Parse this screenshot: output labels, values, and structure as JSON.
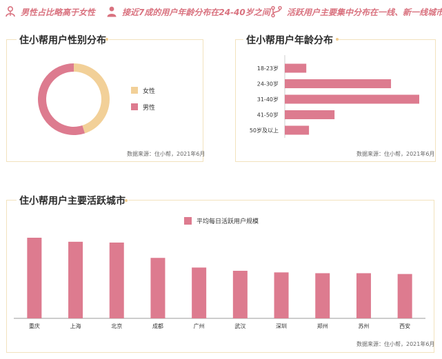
{
  "highlights": [
    {
      "icon": "male-user-icon",
      "text": "男性占比略高于女性"
    },
    {
      "icon": "user-profile-icon",
      "text": "接近7成的用户年龄分布在24-40岁之间"
    },
    {
      "icon": "branch-location-icon",
      "text": "活跃用户主要集中分布在一线、新一线城市"
    }
  ],
  "colors": {
    "accent": "#e07b91",
    "female": "#f2d098",
    "male": "#dd7b8f",
    "border": "#f2e2bd",
    "headline": "#d9727f"
  },
  "gender_panel": {
    "title": "住小帮用户性别分布",
    "source": "数据来源：住小帮，2021年6月"
  },
  "age_panel": {
    "title": "住小帮用户年龄分布",
    "source": "数据来源：住小帮，2021年6月"
  },
  "city_panel": {
    "title": "住小帮用户主要活跃城市",
    "source": "数据来源：住小帮，2021年6月"
  },
  "chart_data": [
    {
      "type": "pie",
      "variant": "donut",
      "categories": [
        "女性",
        "男性"
      ],
      "values": [
        45,
        55
      ],
      "colors": [
        "#f2d098",
        "#dd7b8f"
      ],
      "legend": "right"
    },
    {
      "type": "bar",
      "orientation": "horizontal",
      "categories": [
        "18-23岁",
        "24-30岁",
        "31-40岁",
        "41-50岁",
        "50岁及以上"
      ],
      "values": [
        16,
        79,
        100,
        37,
        18
      ],
      "color": "#dd7b8f",
      "xlim": [
        0,
        100
      ]
    },
    {
      "type": "bar",
      "categories": [
        "重庆",
        "上海",
        "北京",
        "成都",
        "广州",
        "武汉",
        "深圳",
        "郑州",
        "苏州",
        "西安"
      ],
      "series": [
        {
          "name": "平均每日活跃用户规模",
          "values": [
            100,
            95,
            94,
            75,
            63,
            59,
            57,
            56,
            56,
            55
          ]
        }
      ],
      "color": "#dd7b8f",
      "ylim": [
        0,
        100
      ],
      "legend": "top-center"
    }
  ]
}
